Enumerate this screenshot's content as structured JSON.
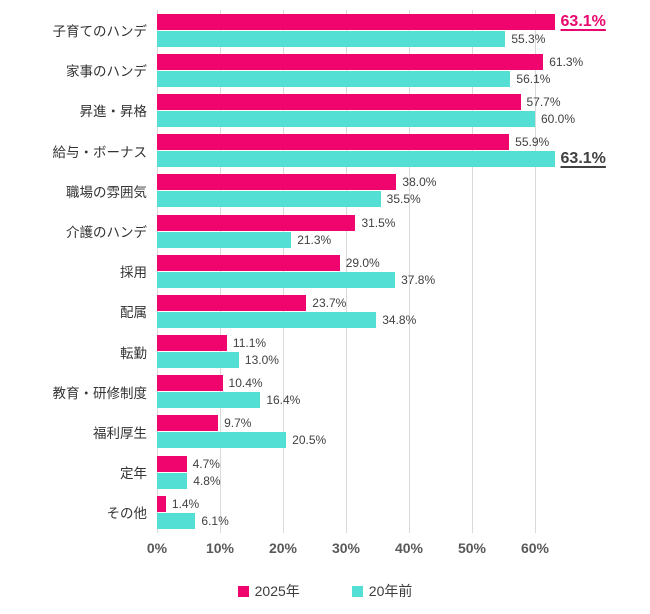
{
  "chart_data": {
    "type": "bar",
    "orientation": "horizontal",
    "title": "",
    "xlabel": "",
    "ylabel": "",
    "categories": [
      "子育てのハンデ",
      "家事のハンデ",
      "昇進・昇格",
      "給与・ボーナス",
      "職場の雰囲気",
      "介護のハンデ",
      "採用",
      "配属",
      "転勤",
      "教育・研修制度",
      "福利厚生",
      "定年",
      "その他"
    ],
    "series": [
      {
        "name": "2025年",
        "color": "#f0056e",
        "values": [
          63.1,
          61.3,
          57.7,
          55.9,
          38.0,
          31.5,
          29.0,
          23.7,
          11.1,
          10.4,
          9.7,
          4.7,
          1.4
        ],
        "labels": [
          "63.1%",
          "61.3%",
          "57.7%",
          "55.9%",
          "38.0%",
          "31.5%",
          "29.0%",
          "23.7%",
          "11.1%",
          "10.4%",
          "9.7%",
          "4.7%",
          "1.4%"
        ],
        "emphasis_index": 0,
        "emphasis_color": "#e9076e"
      },
      {
        "name": "20年前",
        "color": "#53dfd4",
        "values": [
          55.3,
          56.1,
          60.0,
          63.1,
          35.5,
          21.3,
          37.8,
          34.8,
          13.0,
          16.4,
          20.5,
          4.8,
          6.1
        ],
        "labels": [
          "55.3%",
          "56.1%",
          "60.0%",
          "63.1%",
          "35.5%",
          "21.3%",
          "37.8%",
          "34.8%",
          "13.0%",
          "16.4%",
          "20.5%",
          "4.8%",
          "6.1%"
        ],
        "emphasis_index": 3,
        "emphasis_color": "#404040"
      }
    ],
    "x_ticks": [
      "0%",
      "10%",
      "20%",
      "30%",
      "40%",
      "50%",
      "60%"
    ],
    "x_tick_values": [
      0,
      10,
      20,
      30,
      40,
      50,
      60
    ],
    "xlim": [
      0,
      78
    ],
    "grid": true,
    "legend_position": "bottom",
    "colors": {
      "gridline": "#d9d9d9",
      "category_text": "#333333",
      "value_text": "#404040",
      "axis_text": "#595959",
      "legend_text": "#3d3d3d"
    }
  }
}
